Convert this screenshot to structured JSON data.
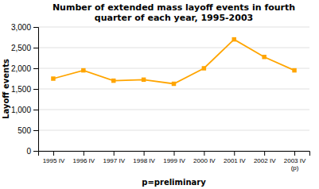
{
  "chart_data": {
    "type": "line",
    "title": "Number of extended mass layoff events in fourth\nquarter of each year, 1995-2003",
    "x_label": "p=preliminary",
    "y_label": "Layoff events",
    "categories": [
      "1995 IV",
      "1996 IV",
      "1997 IV",
      "1998 IV",
      "1999 IV",
      "2000 IV",
      "2001 IV",
      "2002 IV",
      "2003 IV\n(p)"
    ],
    "values": [
      1750,
      1950,
      1700,
      1725,
      1625,
      2000,
      2700,
      2275,
      1950
    ],
    "color": "#FFA500",
    "marker": "square",
    "ylim": [
      0,
      3000
    ],
    "yticks": [
      0,
      500,
      {
        "value": 1000,
        "label": "1,000"
      },
      {
        "value": 1500,
        "label": "1,500"
      },
      {
        "value": 2000,
        "label": "2,000"
      },
      {
        "value": 2500,
        "label": "2,500"
      },
      {
        "value": 3000,
        "label": "3,000"
      }
    ],
    "grid": true
  }
}
